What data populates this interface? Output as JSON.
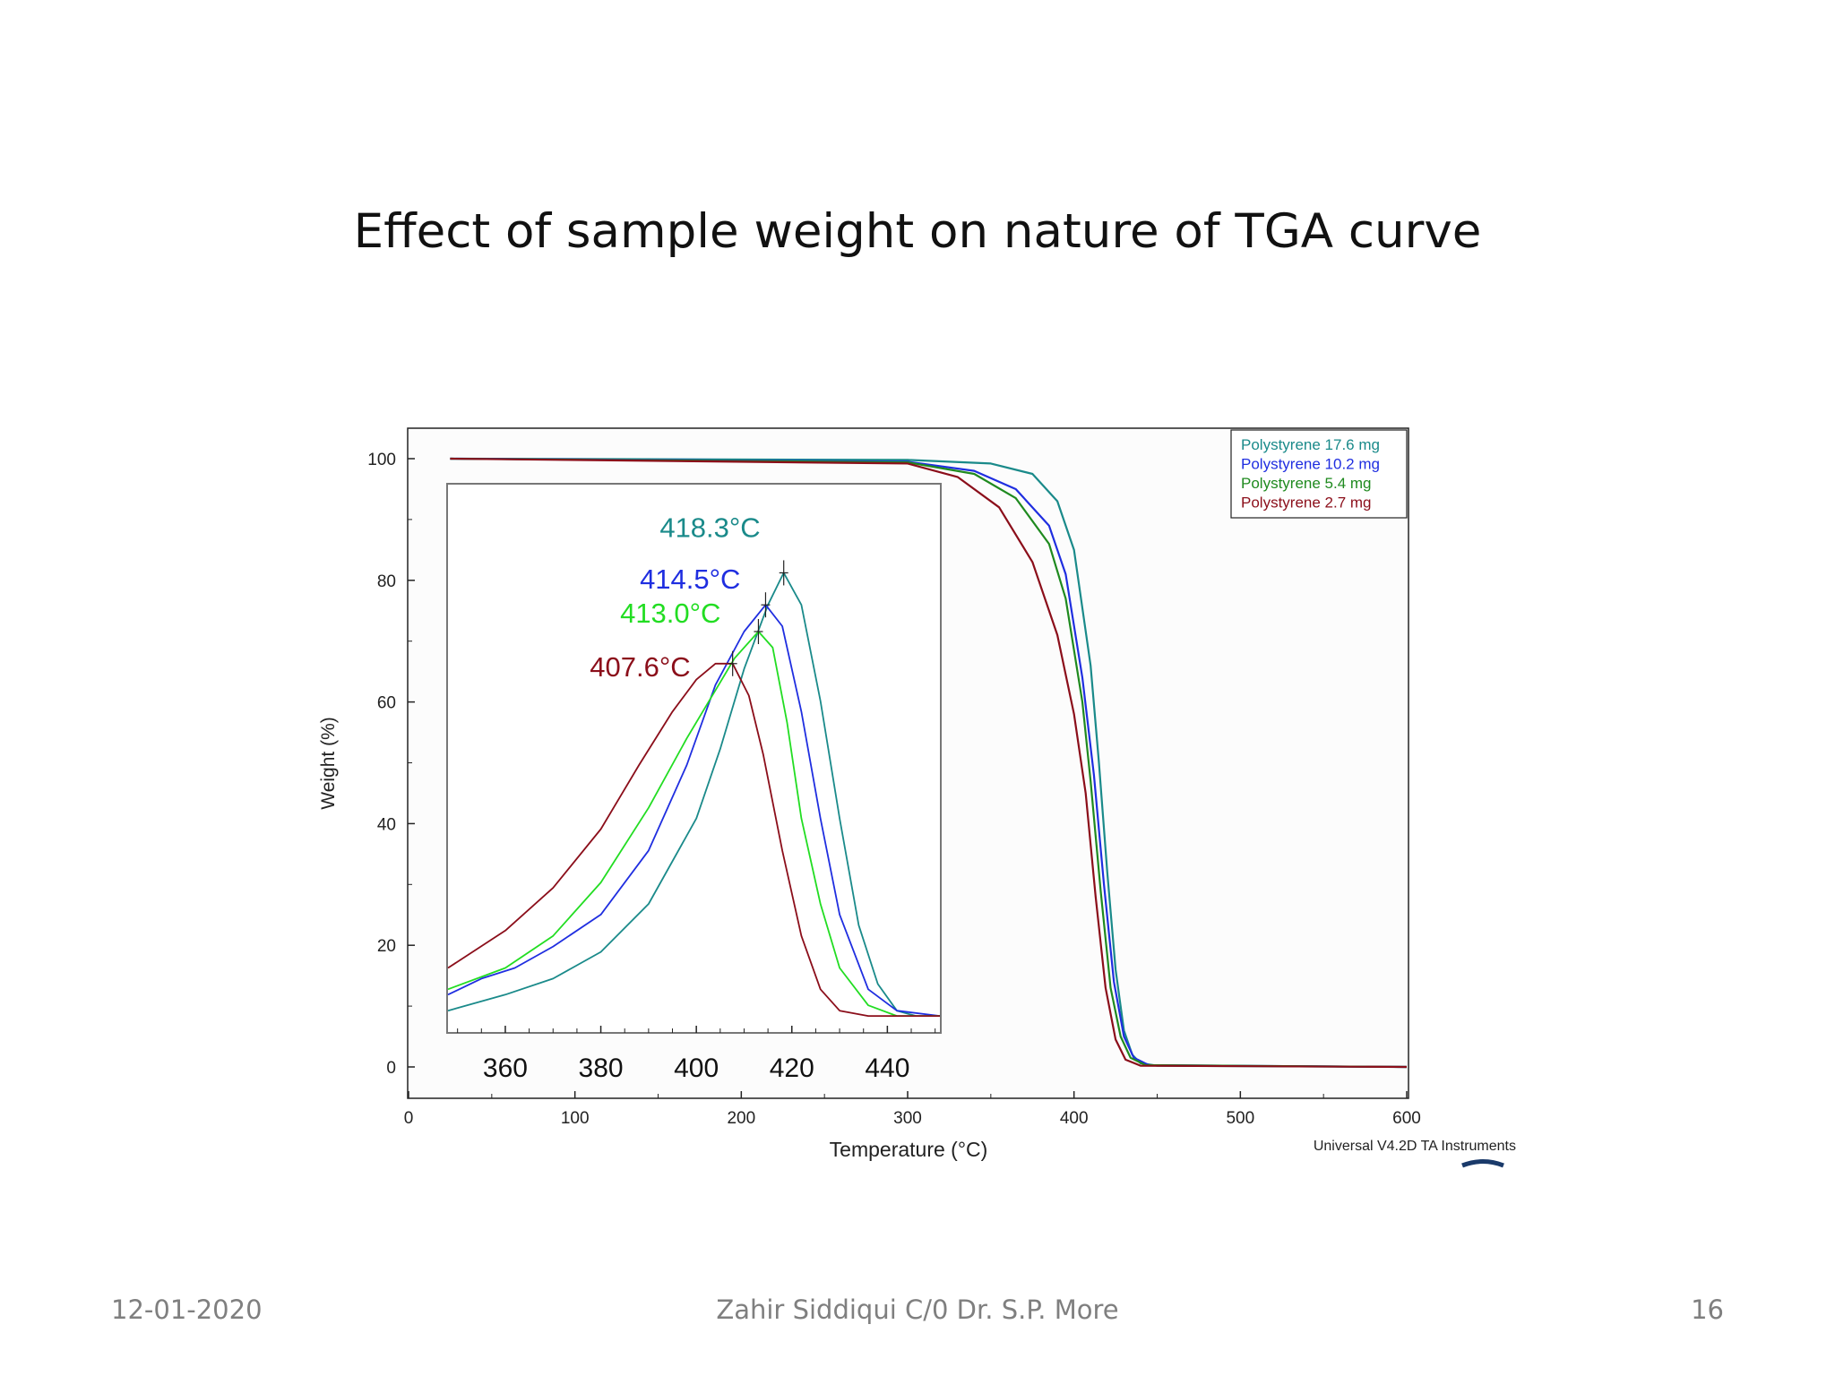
{
  "slide": {
    "title": "Effect of sample weight on nature of TGA curve",
    "footer_date": "12-01-2020",
    "footer_author": "Zahir Siddiqui C/0 Dr. S.P. More",
    "footer_page": "16",
    "credit": "Universal V4.2D TA Instruments"
  },
  "chart_data": [
    {
      "type": "line",
      "xlabel": "Temperature (°C)",
      "ylabel": "Weight (%)",
      "xlim": [
        0,
        600
      ],
      "ylim": [
        -5,
        105
      ],
      "xticks": [
        0,
        100,
        200,
        300,
        400,
        500,
        600
      ],
      "yticks": [
        0,
        20,
        40,
        60,
        80,
        100
      ],
      "legend_position": "top-right",
      "series": [
        {
          "name": "Polystyrene 17.6 mg",
          "color": "#1a8a8a",
          "x": [
            25,
            300,
            350,
            375,
            390,
            400,
            410,
            415,
            420,
            425,
            430,
            435,
            440,
            450,
            600
          ],
          "y": [
            100,
            99.8,
            99.2,
            97.5,
            93,
            85,
            66,
            50,
            32,
            16,
            6,
            2,
            0.6,
            0.2,
            0
          ]
        },
        {
          "name": "Polystyrene 10.2 mg",
          "color": "#1f2ee0",
          "x": [
            25,
            300,
            340,
            365,
            385,
            395,
            405,
            412,
            418,
            424,
            430,
            436,
            445,
            600
          ],
          "y": [
            100,
            99.5,
            98,
            95,
            89,
            81,
            64,
            48,
            30,
            14,
            5,
            1.5,
            0.3,
            0
          ]
        },
        {
          "name": "Polystyrene 5.4 mg",
          "color": "#1f8a1f",
          "x": [
            25,
            300,
            340,
            365,
            385,
            395,
            405,
            410,
            416,
            422,
            428,
            434,
            443,
            600
          ],
          "y": [
            100,
            99.4,
            97.5,
            93.5,
            86,
            77,
            60,
            47,
            29,
            13,
            5,
            1.5,
            0.3,
            0
          ]
        },
        {
          "name": "Polystyrene 2.7 mg",
          "color": "#8b0e1a",
          "x": [
            25,
            300,
            330,
            355,
            375,
            390,
            400,
            407,
            413,
            419,
            425,
            431,
            440,
            600
          ],
          "y": [
            100,
            99.2,
            97,
            92,
            83,
            71,
            58,
            45,
            28,
            13,
            4.5,
            1.2,
            0.2,
            0
          ]
        }
      ]
    },
    {
      "type": "line",
      "inset": true,
      "xticks": [
        360,
        380,
        400,
        420,
        440
      ],
      "xlim": [
        348,
        451
      ],
      "ylim": [
        0,
        1
      ],
      "series": [
        {
          "name": "",
          "color": "#1a8a8a",
          "peak_x": 418.3,
          "peak_y": 0.86,
          "peak_label": "418.3°C",
          "x": [
            348,
            360,
            370,
            380,
            390,
            400,
            405,
            410,
            415,
            418.3,
            422,
            426,
            430,
            434,
            438,
            442,
            446,
            451
          ],
          "y": [
            0.04,
            0.07,
            0.1,
            0.15,
            0.24,
            0.4,
            0.53,
            0.68,
            0.8,
            0.86,
            0.8,
            0.62,
            0.4,
            0.2,
            0.09,
            0.04,
            0.03,
            0.03
          ]
        },
        {
          "name": "",
          "color": "#1f2ee0",
          "peak_x": 414.5,
          "peak_y": 0.8,
          "peak_label": "414.5°C",
          "x": [
            348,
            355,
            362,
            370,
            380,
            390,
            398,
            404,
            410,
            414.5,
            418,
            422,
            426,
            430,
            436,
            442,
            451
          ],
          "y": [
            0.07,
            0.1,
            0.12,
            0.16,
            0.22,
            0.34,
            0.5,
            0.65,
            0.75,
            0.8,
            0.76,
            0.6,
            0.4,
            0.22,
            0.08,
            0.04,
            0.03
          ]
        },
        {
          "name": "",
          "color": "#22dd22",
          "peak_x": 413.0,
          "peak_y": 0.75,
          "peak_label": "413.0°C",
          "x": [
            348,
            360,
            370,
            380,
            390,
            398,
            404,
            408,
            413,
            416,
            419,
            422,
            426,
            430,
            436,
            442,
            451
          ],
          "y": [
            0.08,
            0.12,
            0.18,
            0.28,
            0.42,
            0.55,
            0.64,
            0.7,
            0.75,
            0.72,
            0.58,
            0.4,
            0.24,
            0.12,
            0.05,
            0.03,
            0.03
          ]
        },
        {
          "name": "",
          "color": "#8b0e1a",
          "peak_x": 407.6,
          "peak_y": 0.69,
          "peak_label": "407.6°C",
          "x": [
            348,
            360,
            370,
            380,
            388,
            395,
            400,
            404,
            407.6,
            411,
            414,
            418,
            422,
            426,
            430,
            436,
            451
          ],
          "y": [
            0.12,
            0.19,
            0.27,
            0.38,
            0.5,
            0.6,
            0.66,
            0.69,
            0.69,
            0.63,
            0.52,
            0.34,
            0.18,
            0.08,
            0.04,
            0.03,
            0.03
          ]
        }
      ]
    }
  ]
}
